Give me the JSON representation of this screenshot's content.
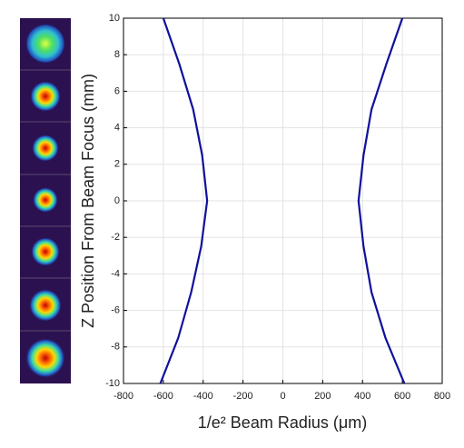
{
  "chart_data": {
    "type": "line",
    "x_label": "1/e² Beam Radius (μm)",
    "y_label": "Z Position From Beam Focus (mm)",
    "series": [
      {
        "color": "#10109c",
        "x": [
          600,
          520,
          445,
          405,
          380,
          405,
          445,
          515,
          610
        ],
        "y": [
          10,
          7.5,
          5,
          2.5,
          0,
          -2.5,
          -5,
          -7.5,
          -10
        ]
      },
      {
        "color": "#10109c",
        "x": [
          -600,
          -520,
          -450,
          -405,
          -380,
          -410,
          -460,
          -525,
          -615
        ],
        "y": [
          10,
          7.5,
          5,
          2.5,
          0,
          -2.5,
          -5,
          -7.5,
          -10
        ]
      }
    ],
    "xlim": [
      -800,
      800
    ],
    "xticks": [
      -800,
      -600,
      -400,
      -200,
      0,
      200,
      400,
      600,
      800
    ],
    "ylim": [
      -10,
      10
    ],
    "yticks": [
      -10,
      -8,
      -6,
      -4,
      -2,
      0,
      2,
      4,
      6,
      8,
      10
    ],
    "grid": true
  }
}
